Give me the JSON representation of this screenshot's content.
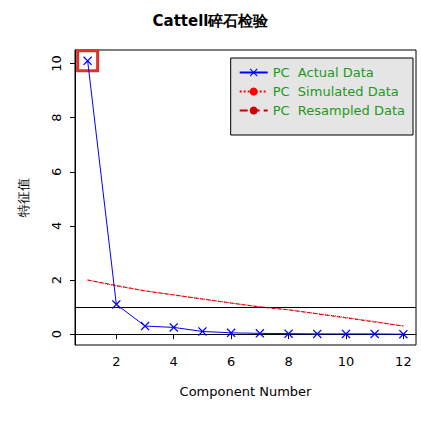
{
  "chart_data": {
    "type": "line",
    "title": "Cattell碎石检验",
    "x_label": "Component Number",
    "y_label": "特征值",
    "x": [
      1,
      2,
      3,
      4,
      5,
      6,
      7,
      8,
      9,
      10,
      11,
      12
    ],
    "series": [
      {
        "name": "PC  Actual Data",
        "color": "#0000ff",
        "marker": "x",
        "line_style": "solid",
        "values": [
          10.1,
          1.1,
          0.3,
          0.25,
          0.1,
          0.05,
          0.03,
          0.02,
          0.01,
          0.01,
          0.01,
          0.0
        ]
      },
      {
        "name": "PC  Simulated Data",
        "color": "#ff0000",
        "line_style": "dotted",
        "values": [
          2.0,
          1.78,
          1.6,
          1.45,
          1.3,
          1.15,
          1.02,
          0.9,
          0.76,
          0.62,
          0.47,
          0.3
        ]
      },
      {
        "name": "PC  Resampled Data",
        "color": "#cc0000",
        "line_style": "dashed",
        "values": [
          2.0,
          1.8,
          1.6,
          1.45,
          1.3,
          1.15,
          1.0,
          0.9,
          0.75,
          0.6,
          0.45,
          0.3
        ]
      }
    ],
    "xlim": [
      0.56,
      12.44
    ],
    "xticks": [
      2,
      4,
      6,
      8,
      10,
      12
    ],
    "ylim": [
      -0.4,
      10.5
    ],
    "yticks": [
      0,
      2,
      4,
      6,
      8,
      10
    ],
    "hline": 1,
    "highlight_x": 1,
    "legend": "top-right",
    "grid": false
  }
}
